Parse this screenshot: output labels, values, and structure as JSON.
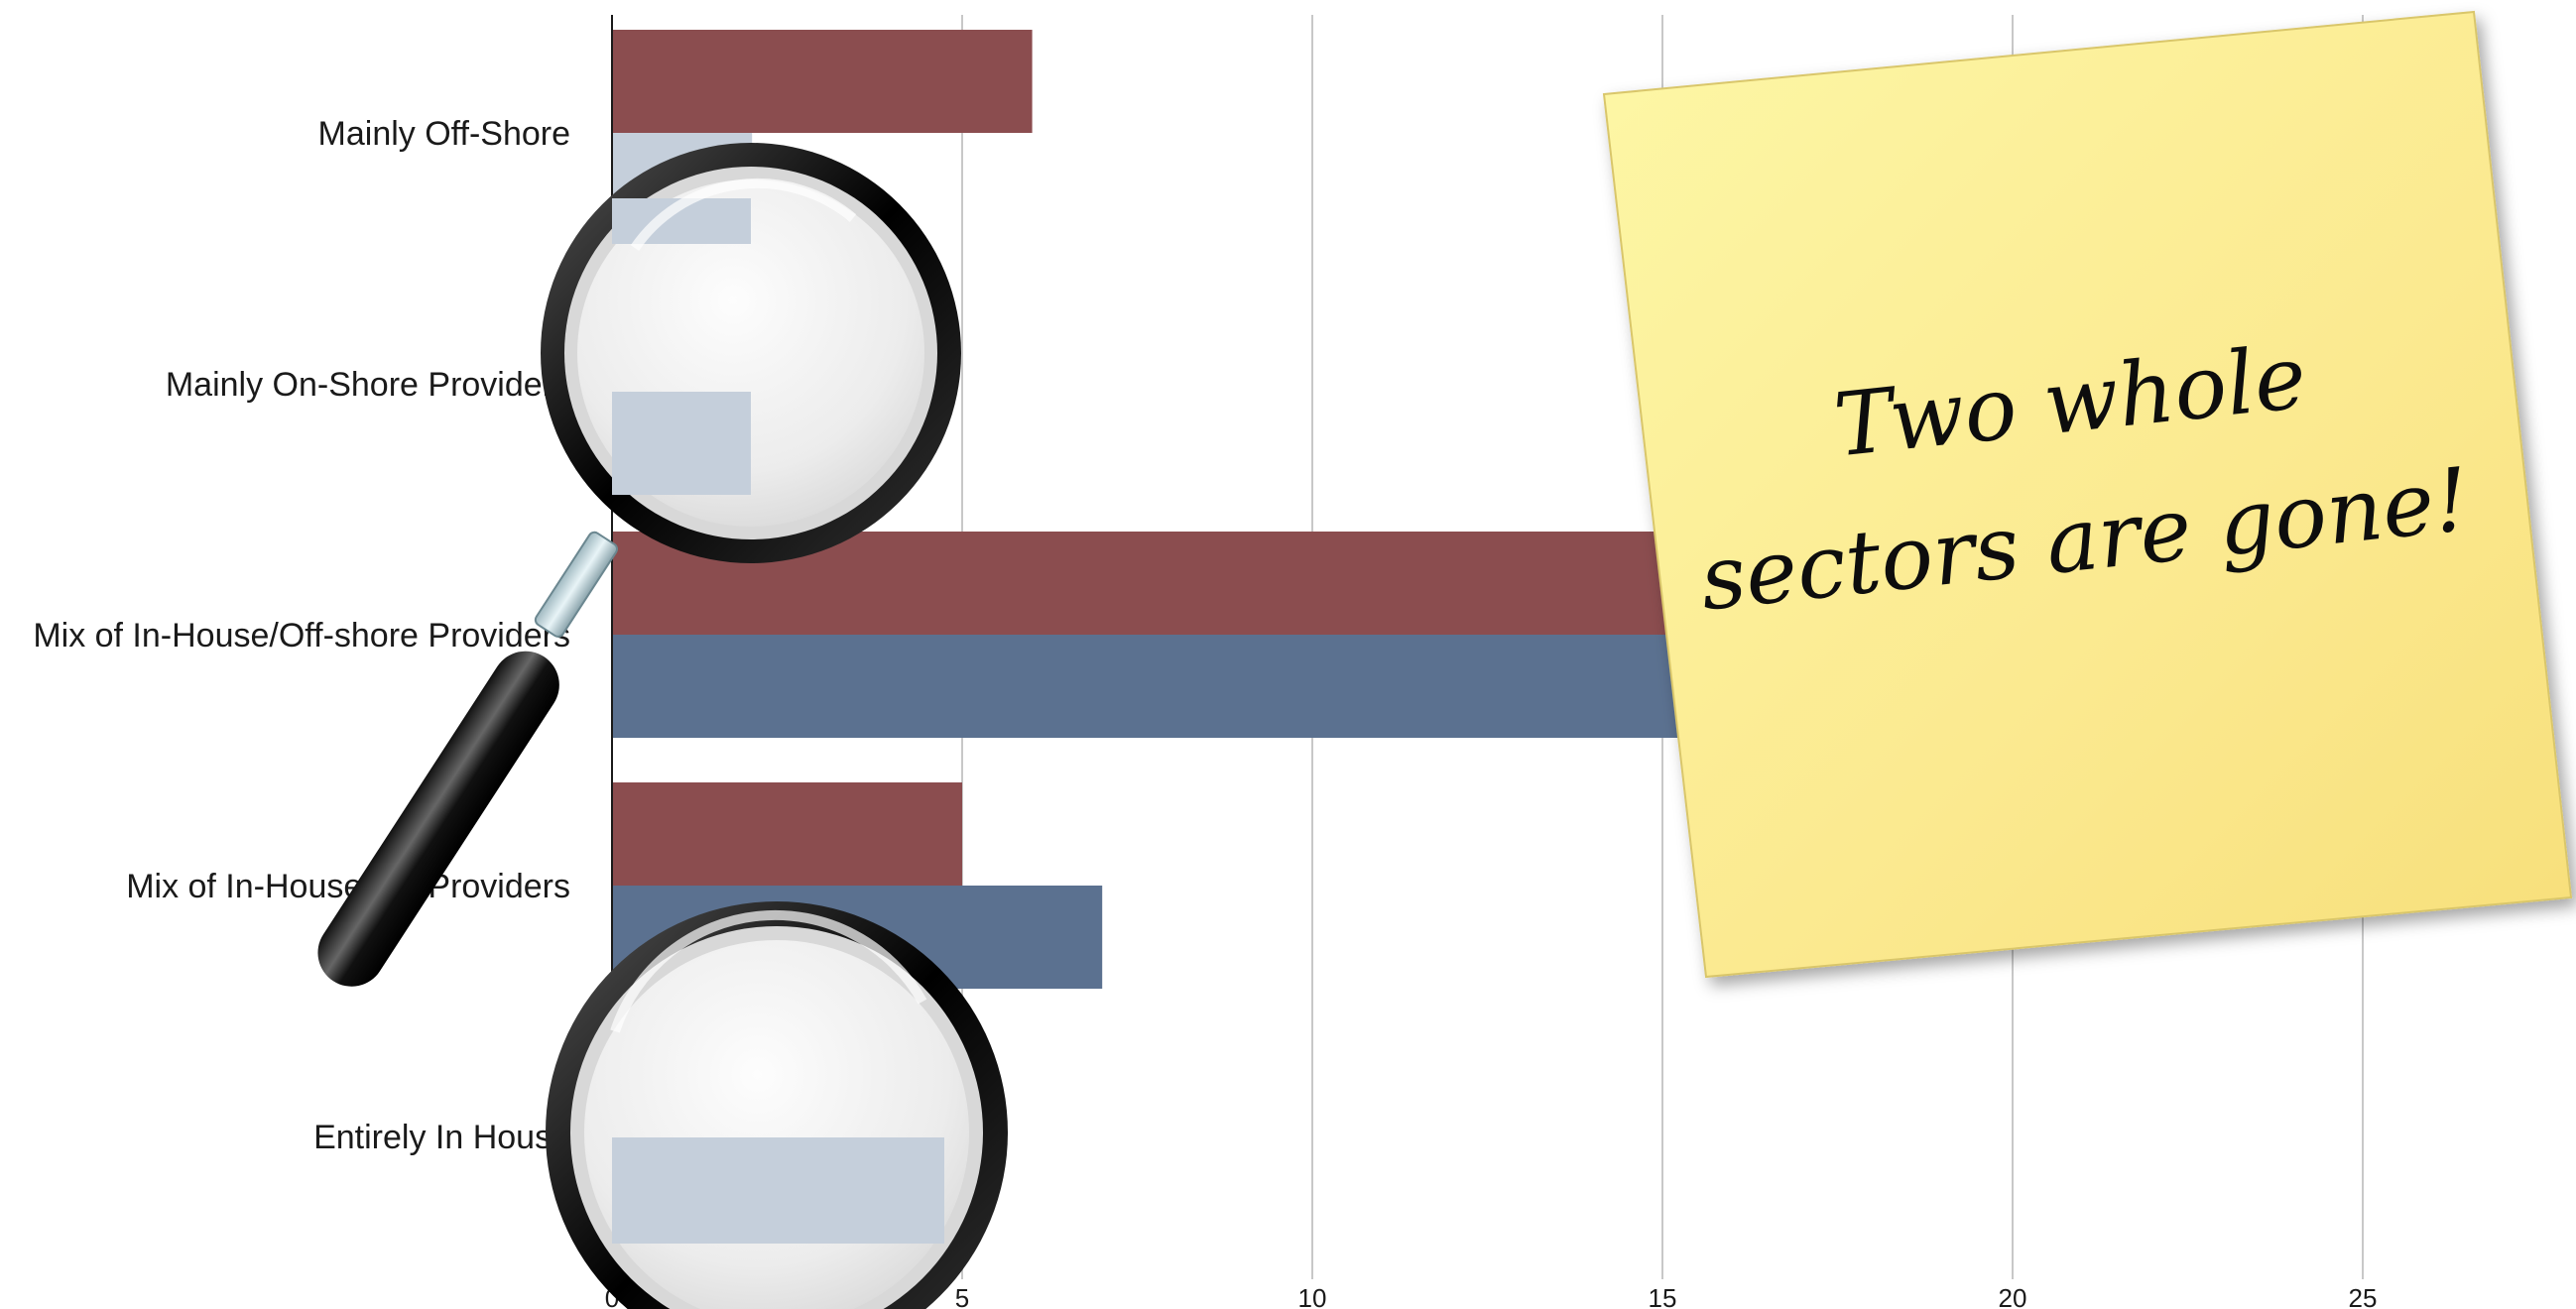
{
  "chart_data": {
    "type": "bar",
    "orientation": "horizontal",
    "categories": [
      "Mainly Off-Shore",
      "Mainly On-Shore Providers",
      "Mix of In-House/Off-shore Providers",
      "Mix of In-House/UK Providers",
      "Entirely In House"
    ],
    "series": [
      {
        "values": [
          6,
          0,
          16,
          5,
          0
        ],
        "color": "#8b4d4f"
      },
      {
        "values": [
          2,
          2,
          16,
          7,
          5
        ],
        "color": "#5b7190",
        "faded": [
          true,
          true,
          false,
          false,
          true
        ]
      }
    ],
    "xticks": [
      0,
      5,
      10,
      15,
      20,
      25
    ],
    "xlim": [
      0,
      28
    ],
    "grid": true,
    "legend": "none"
  },
  "sticky_note": {
    "line1": "Two whole",
    "line2": "sectors are gone!"
  },
  "colors": {
    "sticky_note": "#fbe98f",
    "faded_bar": "#c5cfdb",
    "gridline": "#c8c8c8"
  },
  "icons": [
    "magnifying-glass-icon",
    "magnifying-glass-lens-icon"
  ]
}
